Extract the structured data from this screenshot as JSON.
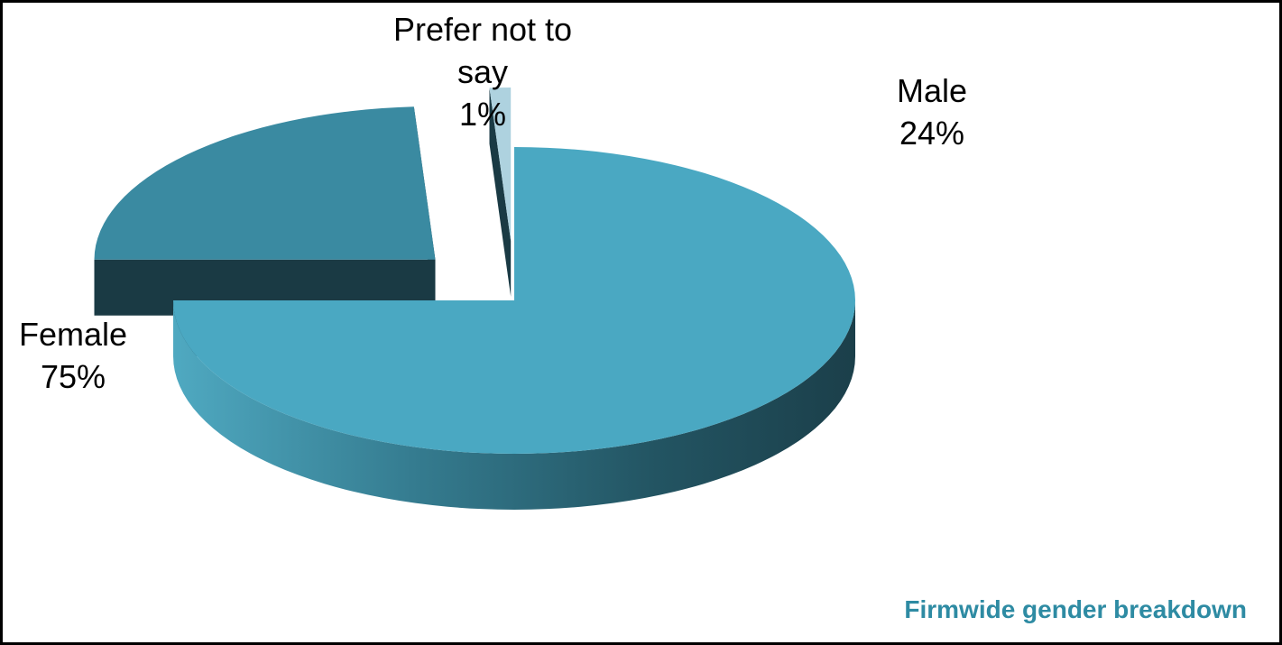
{
  "chart_data": {
    "type": "pie",
    "title": "Firmwide gender breakdown",
    "slices": [
      {
        "label": "Female",
        "value": 75,
        "value_label": "75%",
        "color": "#4aa8c2"
      },
      {
        "label": "Male",
        "value": 24,
        "value_label": "24%",
        "color": "#3a8aa1"
      },
      {
        "label": "Prefer not to say",
        "value": 1,
        "value_label": "1%",
        "color": "#aed2df"
      }
    ],
    "style": "3d-exploded",
    "legend": "none"
  },
  "colors": {
    "frame_border": "#000000",
    "title": "#2e8ba3",
    "side_dark": "#1a3a44"
  }
}
